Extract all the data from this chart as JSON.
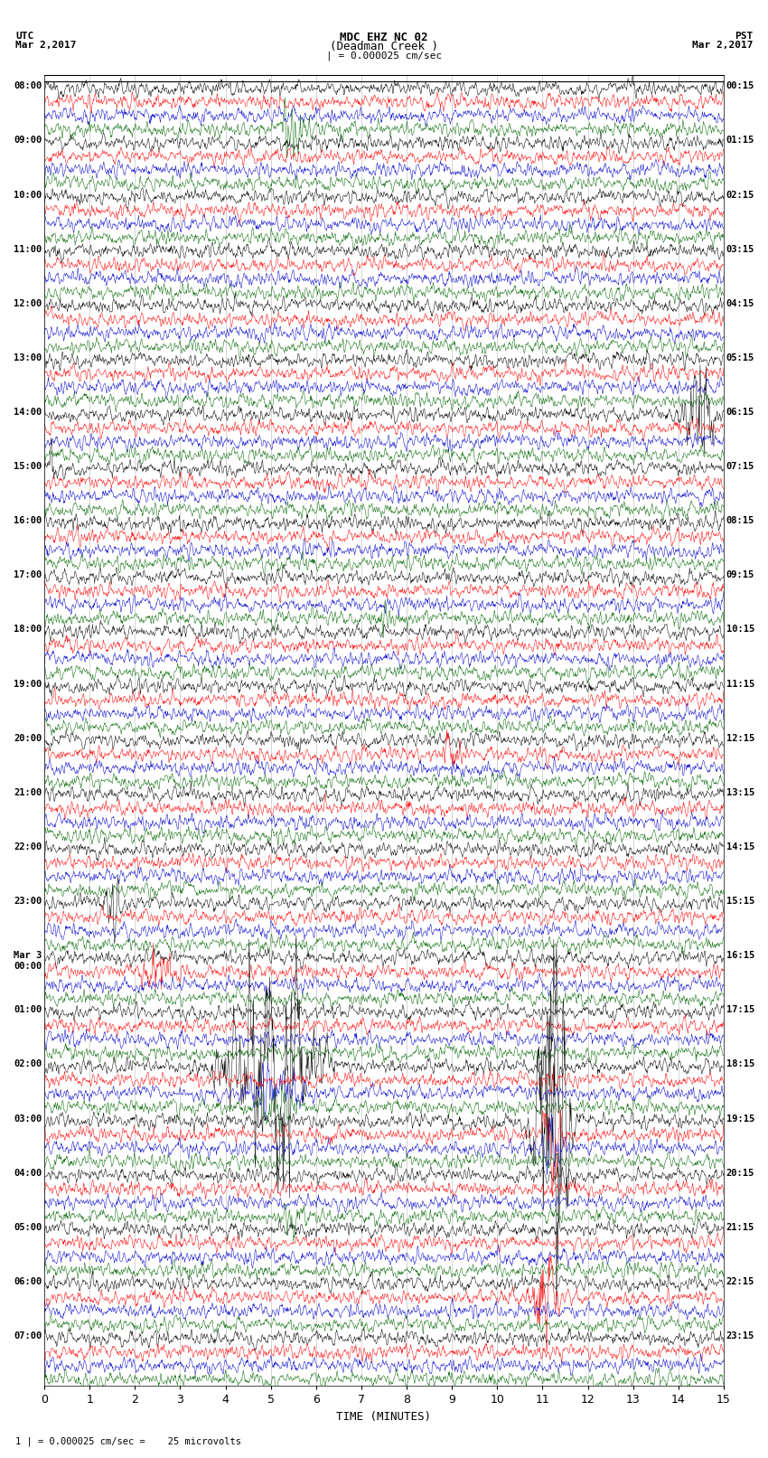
{
  "title_line1": "MDC EHZ NC 02",
  "title_line2": "(Deadman Creek )",
  "title_line3": "| = 0.000025 cm/sec",
  "left_header1": "UTC",
  "left_header2": "Mar 2,2017",
  "right_header1": "PST",
  "right_header2": "Mar 2,2017",
  "xlabel": "TIME (MINUTES)",
  "footer": "1 | = 0.000025 cm/sec =    25 microvolts",
  "background_color": "#ffffff",
  "line_colors": [
    "#000000",
    "#ff0000",
    "#0000cc",
    "#006600"
  ],
  "grid_color": "#aaaaaa",
  "time_axis_max": 15,
  "noise_level": 0.25,
  "utc_labels": [
    "08:00",
    "09:00",
    "10:00",
    "11:00",
    "12:00",
    "13:00",
    "14:00",
    "15:00",
    "16:00",
    "17:00",
    "18:00",
    "19:00",
    "20:00",
    "21:00",
    "22:00",
    "23:00",
    "Mar 3\n00:00",
    "01:00",
    "02:00",
    "03:00",
    "04:00",
    "05:00",
    "06:00",
    "07:00"
  ],
  "pst_labels": [
    "00:15",
    "01:15",
    "02:15",
    "03:15",
    "04:15",
    "05:15",
    "06:15",
    "07:15",
    "08:15",
    "09:15",
    "10:15",
    "11:15",
    "12:15",
    "13:15",
    "14:15",
    "15:15",
    "16:15",
    "17:15",
    "18:15",
    "19:15",
    "20:15",
    "21:15",
    "22:15",
    "23:15"
  ],
  "events": [
    {
      "group": 0,
      "track": 3,
      "minute": 5.5,
      "amp": 3.5,
      "dur": 0.4,
      "color": "#006600"
    },
    {
      "group": 6,
      "track": 0,
      "minute": 14.5,
      "amp": 8.0,
      "dur": 0.4,
      "color": "#ff0000"
    },
    {
      "group": 7,
      "track": 0,
      "minute": 0.1,
      "amp": 3.0,
      "dur": 0.2,
      "color": "#000000"
    },
    {
      "group": 9,
      "track": 3,
      "minute": 7.5,
      "amp": 2.0,
      "dur": 0.2,
      "color": "#000000"
    },
    {
      "group": 12,
      "track": 1,
      "minute": 9.0,
      "amp": 2.5,
      "dur": 0.3,
      "color": "#ff0000"
    },
    {
      "group": 15,
      "track": 0,
      "minute": 1.5,
      "amp": 2.5,
      "dur": 0.3,
      "color": "#ff0000"
    },
    {
      "group": 16,
      "track": 1,
      "minute": 2.5,
      "amp": 3.0,
      "dur": 0.5,
      "color": "#ff0000"
    },
    {
      "group": 18,
      "track": 0,
      "minute": 5.0,
      "amp": 12.0,
      "dur": 1.2,
      "color": "#000000"
    },
    {
      "group": 18,
      "track": 2,
      "minute": 5.2,
      "amp": 3.0,
      "dur": 0.8,
      "color": "#0000cc"
    },
    {
      "group": 18,
      "track": 3,
      "minute": 5.1,
      "amp": 2.5,
      "dur": 0.5,
      "color": "#006600"
    },
    {
      "group": 18,
      "track": 0,
      "minute": 11.2,
      "amp": 15.0,
      "dur": 0.2,
      "color": "#000000"
    },
    {
      "group": 18,
      "track": 1,
      "minute": 11.2,
      "amp": 4.0,
      "dur": 0.15,
      "color": "#ff0000"
    },
    {
      "group": 19,
      "track": 0,
      "minute": 11.2,
      "amp": 18.0,
      "dur": 0.5,
      "color": "#000000"
    },
    {
      "group": 19,
      "track": 1,
      "minute": 11.2,
      "amp": 5.0,
      "dur": 0.3,
      "color": "#ff0000"
    },
    {
      "group": 19,
      "track": 2,
      "minute": 11.2,
      "amp": 3.0,
      "dur": 0.3,
      "color": "#0000cc"
    },
    {
      "group": 20,
      "track": 3,
      "minute": 5.5,
      "amp": 2.0,
      "dur": 0.3,
      "color": "#006600"
    },
    {
      "group": 22,
      "track": 1,
      "minute": 11.0,
      "amp": 6.0,
      "dur": 0.4,
      "color": "#ff0000"
    },
    {
      "group": 13,
      "track": 2,
      "minute": 6.8,
      "amp": 1.5,
      "dur": 0.1,
      "color": "#0000cc"
    }
  ]
}
